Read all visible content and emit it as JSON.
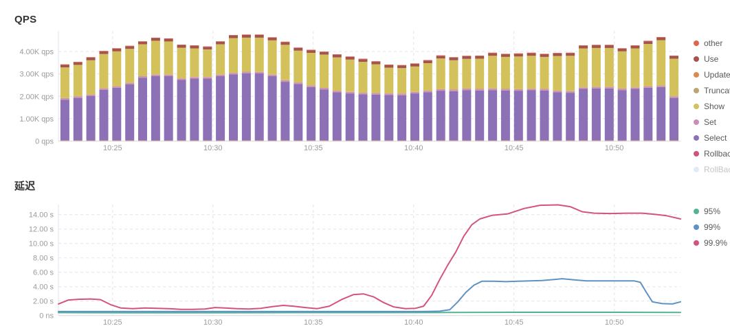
{
  "page": {
    "background": "#ffffff"
  },
  "chart_data": [
    {
      "type": "bar",
      "stacked": true,
      "title": "QPS",
      "x_tick_labels": [
        "10:25",
        "10:30",
        "10:35",
        "10:40",
        "10:45",
        "10:50"
      ],
      "x_tick_minutes": [
        25,
        30,
        35,
        40,
        45,
        50
      ],
      "x_range_minutes": [
        22.3,
        53.3
      ],
      "y_tick_labels": [
        "0 qps",
        "1.00K qps",
        "2.00K qps",
        "3.00K qps",
        "4.00K qps"
      ],
      "y_tick_values": [
        0,
        1000,
        2000,
        3000,
        4000
      ],
      "ylim": [
        0,
        4923
      ],
      "bar_count": 48,
      "series_bottom_to_top": [
        {
          "name": "Rollback",
          "color": "#e79c92",
          "value": 30
        },
        {
          "name": "Select",
          "color": "#8d71b7",
          "values": [
            1820,
            1900,
            1980,
            2260,
            2350,
            2500,
            2800,
            2870,
            2870,
            2700,
            2760,
            2760,
            2870,
            2950,
            3000,
            2990,
            2870,
            2620,
            2520,
            2380,
            2280,
            2150,
            2100,
            2060,
            2050,
            2030,
            2020,
            2100,
            2150,
            2220,
            2200,
            2250,
            2230,
            2250,
            2230,
            2220,
            2240,
            2230,
            2150,
            2130,
            2300,
            2320,
            2320,
            2250,
            2300,
            2350,
            2380,
            1900
          ]
        },
        {
          "name": "Set",
          "color": "#d093b2",
          "value": 70
        },
        {
          "name": "Show",
          "color": "#d3c25b",
          "values": [
            1370,
            1400,
            1530,
            1530,
            1560,
            1520,
            1420,
            1510,
            1480,
            1370,
            1280,
            1230,
            1350,
            1550,
            1520,
            1530,
            1530,
            1580,
            1420,
            1460,
            1480,
            1490,
            1440,
            1380,
            1280,
            1150,
            1140,
            1130,
            1230,
            1370,
            1310,
            1320,
            1350,
            1460,
            1430,
            1460,
            1470,
            1430,
            1550,
            1580,
            1740,
            1740,
            1740,
            1660,
            1740,
            1890,
            2030,
            1680
          ]
        },
        {
          "name": "Use",
          "color": "#a4544e",
          "value": 120
        },
        {
          "name": "other",
          "color": "#e0654c",
          "value": 20
        }
      ],
      "legend": [
        {
          "label": "other",
          "color": "#e0654c",
          "faded": false
        },
        {
          "label": "Use",
          "color": "#a4544e",
          "faded": false
        },
        {
          "label": "Update",
          "color": "#da8a4f",
          "faded": false
        },
        {
          "label": "Truncate",
          "color": "#bfa473",
          "faded": false
        },
        {
          "label": "Show",
          "color": "#d3c25b",
          "faded": false
        },
        {
          "label": "Set",
          "color": "#c98cbb",
          "faded": false
        },
        {
          "label": "Select",
          "color": "#8d71b7",
          "faded": false
        },
        {
          "label": "Rollback",
          "color": "#cd5579",
          "faded": false
        },
        {
          "label": "RollBack",
          "color": "#a9c5e8",
          "faded": true
        }
      ]
    },
    {
      "type": "line",
      "title": "延迟",
      "x_tick_labels": [
        "10:25",
        "10:30",
        "10:35",
        "10:40",
        "10:45",
        "10:50"
      ],
      "x_tick_minutes": [
        25,
        30,
        35,
        40,
        45,
        50
      ],
      "x_range_minutes": [
        22.3,
        53.3
      ],
      "y_tick_labels": [
        "0 ns",
        "2.00 s",
        "4.00 s",
        "6.00 s",
        "8.00 s",
        "10.00 s",
        "12.00 s",
        "14.00 s"
      ],
      "y_tick_values": [
        0,
        2,
        4,
        6,
        8,
        10,
        12,
        14
      ],
      "ylim": [
        0,
        15.4
      ],
      "unit": "seconds",
      "series": [
        {
          "name": "95%",
          "color": "#50b392",
          "points": [
            [
              22.3,
              0.4
            ],
            [
              26,
              0.38
            ],
            [
              30,
              0.38
            ],
            [
              34,
              0.4
            ],
            [
              38,
              0.4
            ],
            [
              42,
              0.42
            ],
            [
              45,
              0.45
            ],
            [
              48,
              0.45
            ],
            [
              50,
              0.45
            ],
            [
              53.3,
              0.42
            ]
          ]
        },
        {
          "name": "99%",
          "color": "#5e91c4",
          "points": [
            [
              22.3,
              0.55
            ],
            [
              26,
              0.55
            ],
            [
              30,
              0.55
            ],
            [
              34,
              0.55
            ],
            [
              38,
              0.55
            ],
            [
              40.5,
              0.55
            ],
            [
              41.3,
              0.6
            ],
            [
              41.8,
              0.8
            ],
            [
              42.2,
              1.9
            ],
            [
              42.6,
              3.2
            ],
            [
              43.0,
              4.2
            ],
            [
              43.4,
              4.75
            ],
            [
              44.0,
              4.75
            ],
            [
              44.6,
              4.7
            ],
            [
              45.2,
              4.75
            ],
            [
              45.8,
              4.8
            ],
            [
              46.4,
              4.85
            ],
            [
              47.0,
              5.0
            ],
            [
              47.4,
              5.1
            ],
            [
              48.0,
              4.95
            ],
            [
              48.6,
              4.8
            ],
            [
              49.4,
              4.8
            ],
            [
              50.2,
              4.8
            ],
            [
              51.0,
              4.8
            ],
            [
              51.3,
              4.6
            ],
            [
              51.6,
              3.2
            ],
            [
              51.9,
              1.9
            ],
            [
              52.4,
              1.65
            ],
            [
              52.9,
              1.6
            ],
            [
              53.3,
              1.9
            ]
          ]
        },
        {
          "name": "99.9%",
          "color": "#d3537e",
          "points": [
            [
              22.3,
              1.6
            ],
            [
              22.8,
              2.15
            ],
            [
              23.3,
              2.25
            ],
            [
              23.9,
              2.3
            ],
            [
              24.4,
              2.2
            ],
            [
              24.9,
              1.5
            ],
            [
              25.4,
              1.05
            ],
            [
              26.0,
              0.95
            ],
            [
              26.6,
              1.05
            ],
            [
              27.2,
              1.0
            ],
            [
              27.8,
              0.95
            ],
            [
              28.4,
              0.85
            ],
            [
              29.0,
              0.85
            ],
            [
              29.6,
              0.9
            ],
            [
              30.1,
              1.1
            ],
            [
              30.6,
              1.05
            ],
            [
              31.2,
              0.95
            ],
            [
              31.8,
              0.9
            ],
            [
              32.4,
              1.0
            ],
            [
              33.0,
              1.25
            ],
            [
              33.5,
              1.4
            ],
            [
              34.0,
              1.3
            ],
            [
              34.6,
              1.1
            ],
            [
              35.2,
              0.95
            ],
            [
              35.8,
              1.3
            ],
            [
              36.4,
              2.2
            ],
            [
              37.0,
              2.9
            ],
            [
              37.5,
              3.0
            ],
            [
              38.0,
              2.6
            ],
            [
              38.5,
              1.8
            ],
            [
              39.0,
              1.2
            ],
            [
              39.6,
              0.95
            ],
            [
              40.1,
              1.0
            ],
            [
              40.5,
              1.3
            ],
            [
              40.9,
              2.8
            ],
            [
              41.3,
              5.0
            ],
            [
              41.7,
              7.0
            ],
            [
              42.1,
              8.8
            ],
            [
              42.5,
              11.0
            ],
            [
              42.9,
              12.6
            ],
            [
              43.3,
              13.4
            ],
            [
              43.9,
              13.9
            ],
            [
              44.7,
              14.1
            ],
            [
              45.5,
              14.85
            ],
            [
              46.3,
              15.3
            ],
            [
              47.2,
              15.35
            ],
            [
              47.8,
              15.1
            ],
            [
              48.4,
              14.4
            ],
            [
              49.0,
              14.2
            ],
            [
              49.8,
              14.15
            ],
            [
              50.6,
              14.2
            ],
            [
              51.4,
              14.2
            ],
            [
              52.0,
              14.05
            ],
            [
              52.6,
              13.85
            ],
            [
              53.3,
              13.4
            ]
          ]
        }
      ],
      "legend": [
        {
          "label": "95%",
          "color": "#50b392",
          "faded": false
        },
        {
          "label": "99%",
          "color": "#5e91c4",
          "faded": false
        },
        {
          "label": "99.9%",
          "color": "#d3537e",
          "faded": false
        }
      ]
    }
  ]
}
